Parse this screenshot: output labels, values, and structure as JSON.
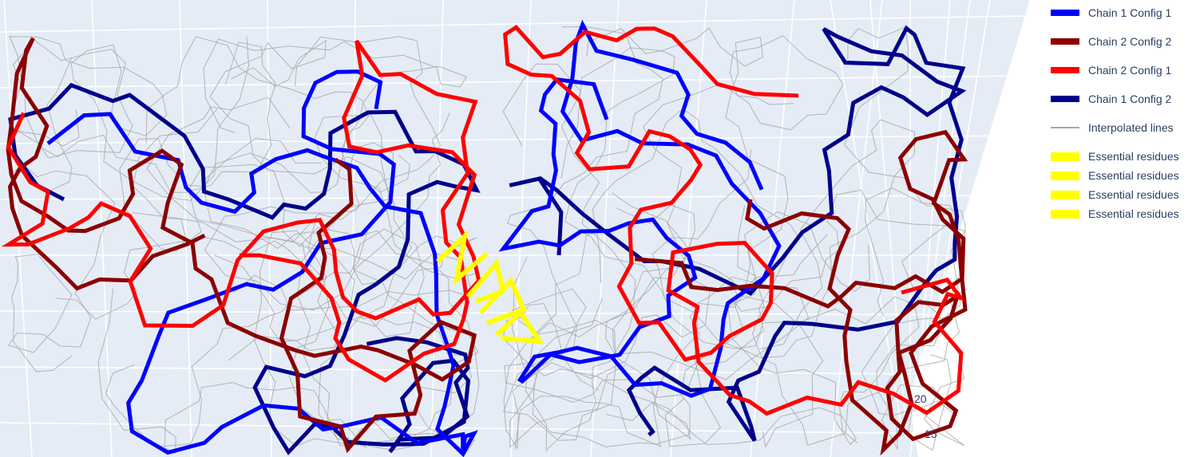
{
  "chart_data": {
    "type": "line",
    "subtype": "3d-backbone-trace",
    "scene_background": "#e5ecf6",
    "grid": true,
    "z_ticks": [
      "20",
      "15"
    ],
    "legend_position": "top-right",
    "series": [
      {
        "name": "Chain 1 Config 1",
        "color": "#0000ff"
      },
      {
        "name": "Chain 2 Config 2",
        "color": "#8b0000"
      },
      {
        "name": "Chain 2 Config 1",
        "color": "#ff0000"
      },
      {
        "name": "Chain 1 Config 2",
        "color": "#00008b"
      },
      {
        "name": "Interpolated lines",
        "color": "#a9a9a9"
      },
      {
        "name": "Essential residues",
        "color": "#ffff00"
      },
      {
        "name": "Essential residues",
        "color": "#ffff00"
      },
      {
        "name": "Essential residues",
        "color": "#ffff00"
      },
      {
        "name": "Essential residues",
        "color": "#ffff00"
      }
    ]
  }
}
